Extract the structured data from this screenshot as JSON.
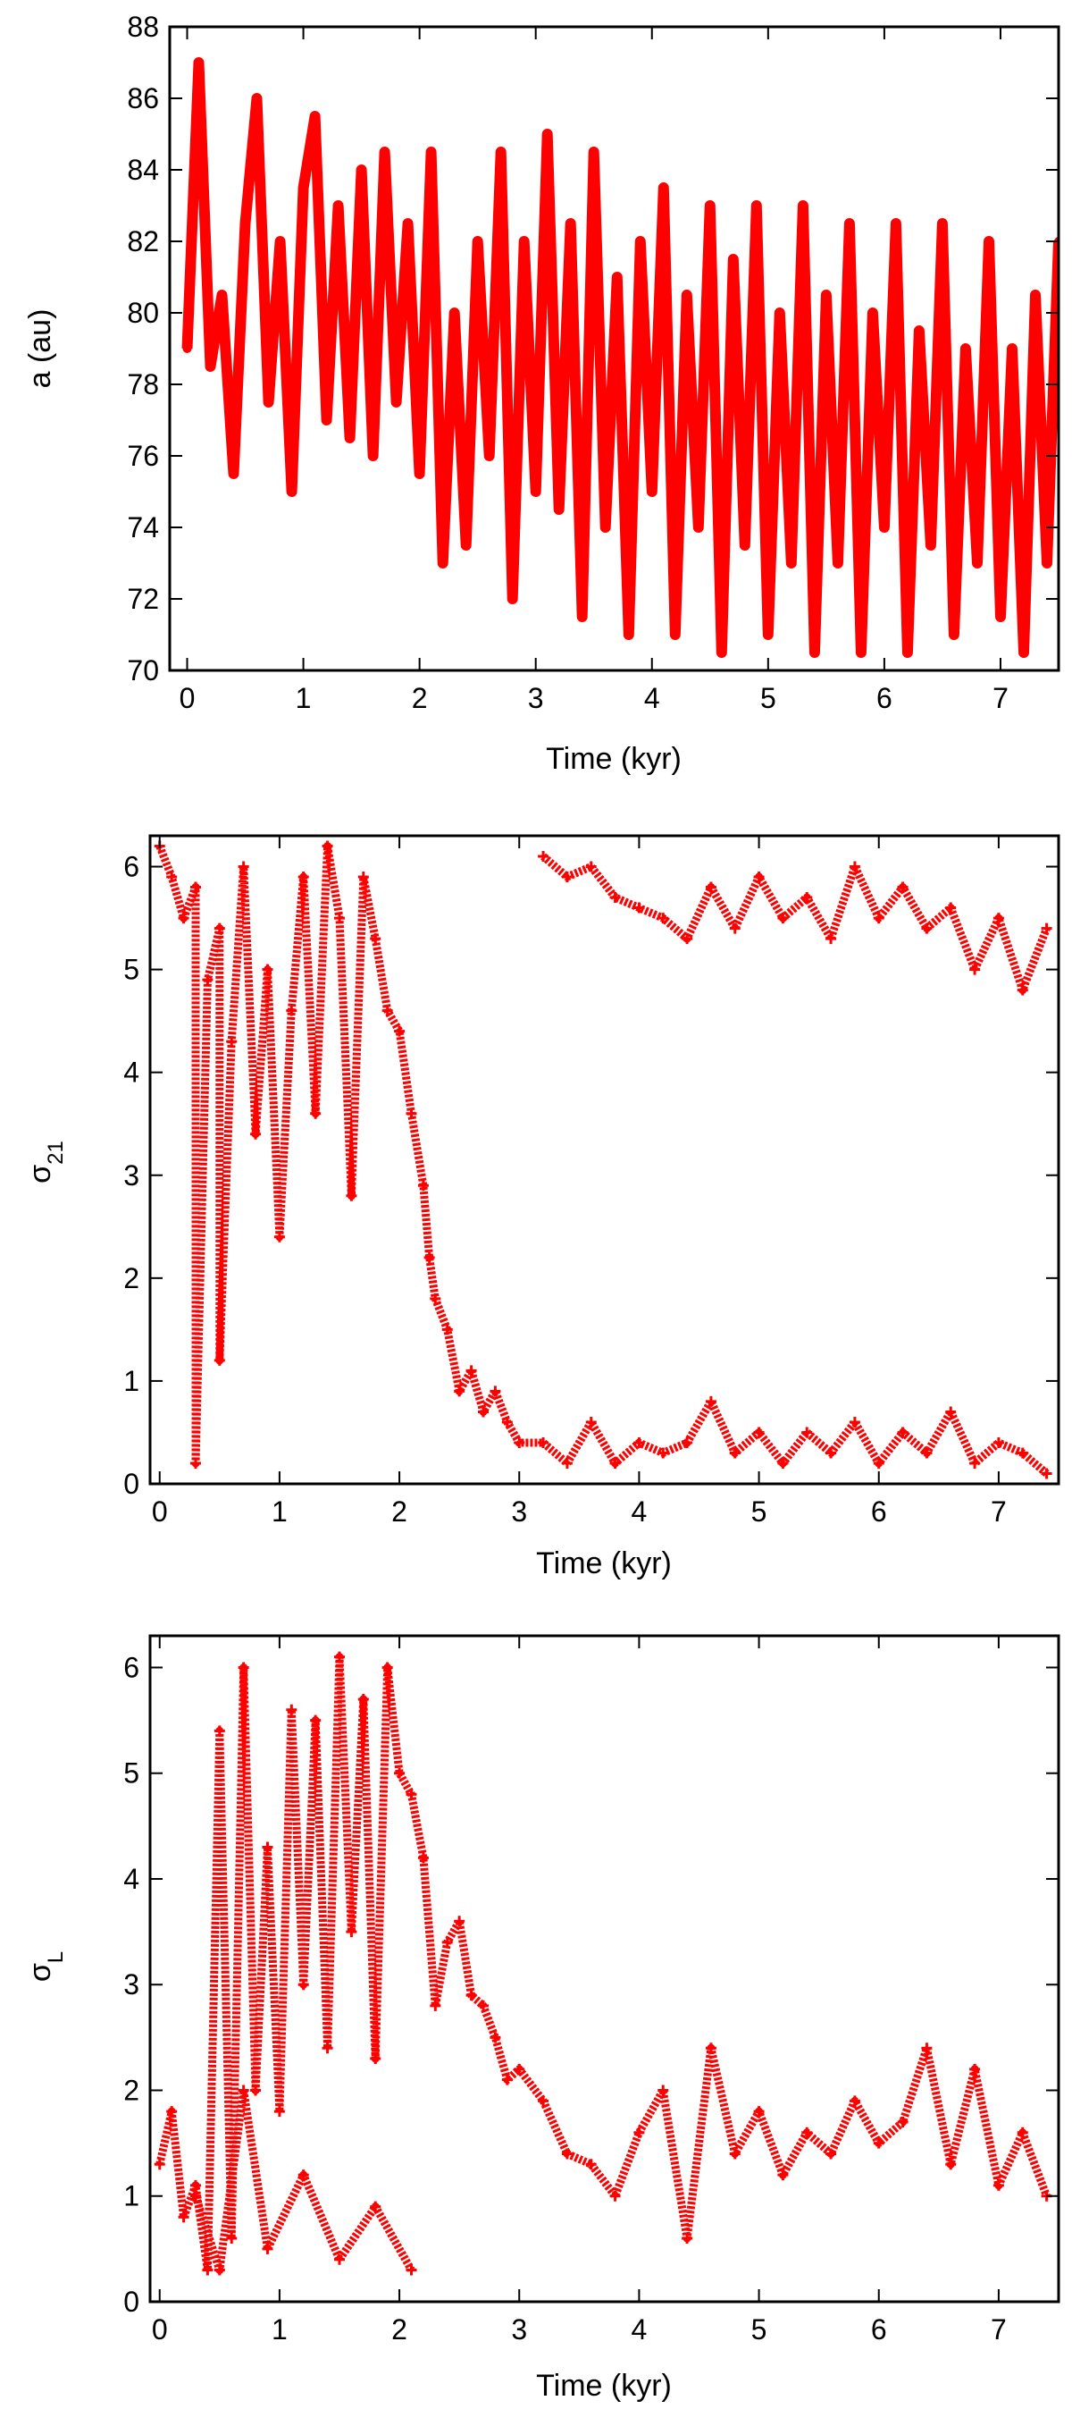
{
  "colors": {
    "series": "#ff0000",
    "axis": "#000000",
    "background": "#ffffff"
  },
  "chart_data": [
    {
      "type": "line",
      "xlabel": "Time (kyr)",
      "ylabel": "a (au)",
      "ylabel_main": "a (au)",
      "ylabel_sub": "",
      "xlim": [
        -0.15,
        7.5
      ],
      "ylim": [
        70,
        88
      ],
      "xticks": [
        "0",
        "1",
        "2",
        "3",
        "4",
        "5",
        "6",
        "7"
      ],
      "yticks": [
        "70",
        "72",
        "74",
        "76",
        "78",
        "80",
        "82",
        "84",
        "86",
        "88"
      ],
      "grid": false,
      "legend": "none",
      "series": [
        {
          "style": "thick-line",
          "x": [
            0.0,
            0.1,
            0.2,
            0.3,
            0.4,
            0.5,
            0.6,
            0.7,
            0.8,
            0.9,
            1.0,
            1.1,
            1.2,
            1.3,
            1.4,
            1.5,
            1.6,
            1.7,
            1.8,
            1.9,
            2.0,
            2.1,
            2.2,
            2.3,
            2.4,
            2.5,
            2.6,
            2.7,
            2.8,
            2.9,
            3.0,
            3.1,
            3.2,
            3.3,
            3.4,
            3.5,
            3.6,
            3.7,
            3.8,
            3.9,
            4.0,
            4.1,
            4.2,
            4.3,
            4.4,
            4.5,
            4.6,
            4.7,
            4.8,
            4.9,
            5.0,
            5.1,
            5.2,
            5.3,
            5.4,
            5.5,
            5.6,
            5.7,
            5.8,
            5.9,
            6.0,
            6.1,
            6.2,
            6.3,
            6.4,
            6.5,
            6.6,
            6.7,
            6.8,
            6.9,
            7.0,
            7.1,
            7.2,
            7.3,
            7.4,
            7.5
          ],
          "y": [
            79.0,
            87.0,
            78.5,
            80.5,
            75.5,
            82.5,
            86.0,
            77.5,
            82.0,
            75.0,
            83.5,
            85.5,
            77.0,
            83.0,
            76.5,
            84.0,
            76.0,
            84.5,
            77.5,
            82.5,
            75.5,
            84.5,
            73.0,
            80.0,
            73.5,
            82.0,
            76.0,
            84.5,
            72.0,
            82.0,
            75.0,
            85.0,
            74.5,
            82.5,
            71.5,
            84.5,
            74.0,
            81.0,
            71.0,
            82.0,
            75.0,
            83.5,
            71.0,
            80.5,
            74.0,
            83.0,
            70.5,
            81.5,
            73.5,
            83.0,
            71.0,
            80.0,
            73.0,
            83.0,
            70.5,
            80.5,
            73.0,
            82.5,
            70.5,
            80.0,
            74.0,
            82.5,
            70.5,
            79.5,
            73.5,
            82.5,
            71.0,
            79.0,
            73.0,
            82.0,
            71.5,
            79.0,
            70.5,
            80.5,
            73.0,
            82.0
          ]
        }
      ]
    },
    {
      "type": "scatter",
      "xlabel": "Time (kyr)",
      "ylabel": "σ21",
      "ylabel_main": "σ",
      "ylabel_sub": "21",
      "xlim": [
        -0.08,
        7.5
      ],
      "ylim": [
        0,
        6.3
      ],
      "xticks": [
        "0",
        "1",
        "2",
        "3",
        "4",
        "5",
        "6",
        "7"
      ],
      "yticks": [
        "0",
        "1",
        "2",
        "3",
        "4",
        "5",
        "6"
      ],
      "grid": false,
      "legend": "none",
      "series": [
        {
          "style": "dense-points",
          "x": [
            0.0,
            0.1,
            0.2,
            0.3,
            0.3,
            0.4,
            0.5,
            0.5,
            0.6,
            0.7,
            0.8,
            0.9,
            1.0,
            1.1,
            1.2,
            1.3,
            1.4,
            1.5,
            1.6,
            1.7,
            1.8,
            1.9,
            2.0,
            2.1,
            2.2,
            2.25,
            2.3,
            2.4,
            2.5,
            2.6,
            2.7,
            2.8,
            2.9,
            3.0,
            3.2,
            3.4,
            3.6,
            3.8,
            4.0,
            4.2,
            4.4,
            4.6,
            4.8,
            5.0,
            5.2,
            5.4,
            5.6,
            5.8,
            6.0,
            6.2,
            6.4,
            6.6,
            6.8,
            7.0,
            7.2,
            7.4
          ],
          "y": [
            6.2,
            5.9,
            5.5,
            5.8,
            0.2,
            4.9,
            5.4,
            1.2,
            4.3,
            6.0,
            3.4,
            5.0,
            2.4,
            4.6,
            5.9,
            3.6,
            6.2,
            5.5,
            2.8,
            5.9,
            5.3,
            4.6,
            4.4,
            3.6,
            2.9,
            2.2,
            1.8,
            1.5,
            0.9,
            1.1,
            0.7,
            0.9,
            0.6,
            0.4,
            0.4,
            0.2,
            0.6,
            0.2,
            0.4,
            0.3,
            0.4,
            0.8,
            0.3,
            0.5,
            0.2,
            0.5,
            0.3,
            0.6,
            0.2,
            0.5,
            0.3,
            0.7,
            0.2,
            0.4,
            0.3,
            0.1
          ]
        },
        {
          "style": "dense-points",
          "x": [
            3.2,
            3.4,
            3.6,
            3.8,
            4.0,
            4.2,
            4.4,
            4.6,
            4.8,
            5.0,
            5.2,
            5.4,
            5.6,
            5.8,
            6.0,
            6.2,
            6.4,
            6.6,
            6.8,
            7.0,
            7.2,
            7.4
          ],
          "y": [
            6.1,
            5.9,
            6.0,
            5.7,
            5.6,
            5.5,
            5.3,
            5.8,
            5.4,
            5.9,
            5.5,
            5.7,
            5.3,
            6.0,
            5.5,
            5.8,
            5.4,
            5.6,
            5.0,
            5.5,
            4.8,
            5.4
          ]
        }
      ]
    },
    {
      "type": "scatter",
      "xlabel": "Time (kyr)",
      "ylabel": "σL",
      "ylabel_main": "σ",
      "ylabel_sub": "L",
      "xlim": [
        -0.08,
        7.5
      ],
      "ylim": [
        0,
        6.3
      ],
      "xticks": [
        "0",
        "1",
        "2",
        "3",
        "4",
        "5",
        "6",
        "7"
      ],
      "yticks": [
        "0",
        "1",
        "2",
        "3",
        "4",
        "5",
        "6"
      ],
      "grid": false,
      "legend": "none",
      "series": [
        {
          "style": "dense-points",
          "x": [
            0.0,
            0.1,
            0.2,
            0.3,
            0.4,
            0.5,
            0.6,
            0.7,
            0.8,
            0.9,
            1.0,
            1.1,
            1.2,
            1.3,
            1.4,
            1.5,
            1.6,
            1.7,
            1.8,
            1.9,
            2.0,
            2.1,
            2.2,
            2.3,
            2.4,
            2.5,
            2.6,
            2.7,
            2.8,
            2.9,
            3.0,
            3.2,
            3.4,
            3.6,
            3.8,
            4.0,
            4.2,
            4.4,
            4.6,
            4.8,
            5.0,
            5.2,
            5.4,
            5.6,
            5.8,
            6.0,
            6.2,
            6.4,
            6.6,
            6.8,
            7.0,
            7.2,
            7.4
          ],
          "y": [
            1.3,
            1.8,
            0.8,
            1.1,
            0.3,
            5.4,
            0.6,
            6.0,
            2.0,
            4.3,
            1.8,
            5.6,
            3.0,
            5.5,
            2.4,
            6.1,
            3.5,
            5.7,
            2.3,
            6.0,
            5.0,
            4.8,
            4.2,
            2.8,
            3.4,
            3.6,
            2.9,
            2.8,
            2.5,
            2.1,
            2.2,
            1.9,
            1.4,
            1.3,
            1.0,
            1.6,
            2.0,
            0.6,
            2.4,
            1.4,
            1.8,
            1.2,
            1.6,
            1.4,
            1.9,
            1.5,
            1.7,
            2.4,
            1.3,
            2.2,
            1.1,
            1.6,
            1.0
          ]
        },
        {
          "style": "dense-points",
          "x": [
            0.3,
            0.5,
            0.7,
            0.9,
            1.2,
            1.5,
            1.8,
            2.1
          ],
          "y": [
            1.0,
            0.3,
            2.0,
            0.5,
            1.2,
            0.4,
            0.9,
            0.3
          ]
        }
      ]
    }
  ]
}
